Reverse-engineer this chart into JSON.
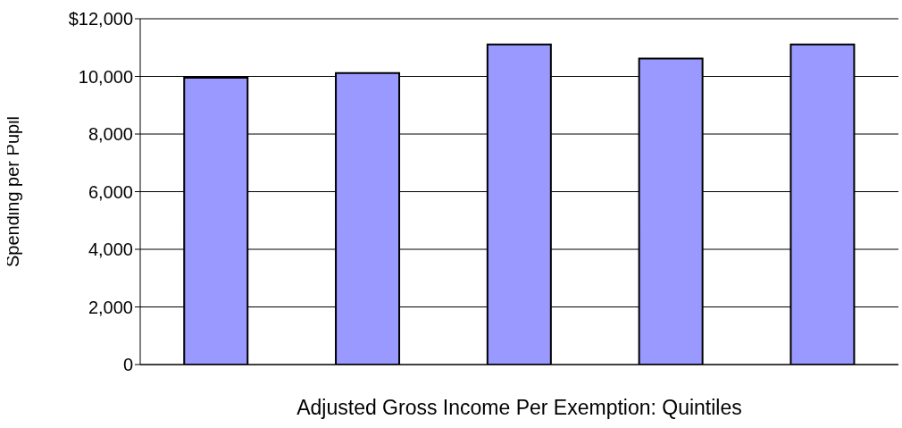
{
  "chart_data": {
    "type": "bar",
    "xlabel": "Adjusted Gross Income Per Exemption: Quintiles",
    "ylabel": "Spending per Pupil",
    "categories": [
      null,
      null,
      null,
      null,
      null
    ],
    "values": [
      9950,
      10120,
      11110,
      10620,
      11110
    ],
    "color": "#9999ff",
    "ylim": [
      0,
      12000
    ],
    "yticks": [
      0,
      {
        "value": 2000,
        "label": "2,000"
      },
      {
        "value": 4000,
        "label": "4,000"
      },
      {
        "value": 6000,
        "label": "6,000"
      },
      {
        "value": 8000,
        "label": "8,000"
      },
      {
        "value": 10000,
        "label": "10,000"
      },
      {
        "value": 12000,
        "label": "$12,000"
      }
    ],
    "grid": "y"
  }
}
